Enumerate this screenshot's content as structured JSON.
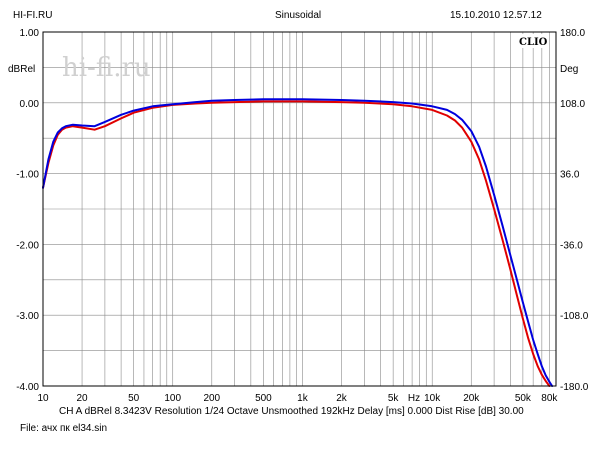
{
  "header": {
    "site": "HI-FI.RU",
    "mode": "Sinusoidal",
    "datetime": "15.10.2010 12.57.12"
  },
  "watermark": "hi-fi.ru",
  "brand": "CLIO",
  "footer": {
    "line1": "CH A   dBRel 8.3423V   Resolution 1/24 Octave   Unsmoothed   192kHz   Delay [ms] 0.000   Dist Rise [dB] 30.00",
    "line2": "File: ачх пк el34.sin"
  },
  "chart_data": {
    "type": "line",
    "x_scale": "log",
    "xlim": [
      10,
      90000
    ],
    "x_ticks": [
      10,
      20,
      50,
      100,
      200,
      500,
      1000,
      2000,
      5000,
      10000,
      20000,
      50000,
      80000
    ],
    "x_tick_labels": [
      "10",
      "20",
      "50",
      "100",
      "200",
      "500",
      "1k",
      "2k",
      "5k",
      "10k",
      "20k",
      "50k",
      "80k"
    ],
    "x_unit": "Hz",
    "ylabel_left": "dBRel",
    "ylim_left": [
      -4.0,
      1.0
    ],
    "y_ticks_left": [
      "1.00",
      "0.00",
      "-1.00",
      "-2.00",
      "-3.00",
      "-4.00"
    ],
    "ylabel_right": "Deg",
    "ylim_right": [
      -180,
      180
    ],
    "y_ticks_right": [
      "180.0",
      "108.0",
      "36.0",
      "-36.0",
      "-108.0",
      "-180.0"
    ],
    "grid": true,
    "series": [
      {
        "color": "#e00000",
        "x": [
          10,
          11,
          12,
          13,
          14,
          15,
          17,
          20,
          25,
          30,
          40,
          50,
          70,
          100,
          150,
          200,
          300,
          500,
          700,
          1000,
          2000,
          3000,
          5000,
          7000,
          10000,
          13000,
          15000,
          17000,
          20000,
          23000,
          26000,
          30000,
          35000,
          40000,
          45000,
          50000,
          55000,
          60000,
          65000,
          70000,
          75000,
          80000
        ],
        "y": [
          -1.2,
          -0.85,
          -0.6,
          -0.45,
          -0.38,
          -0.35,
          -0.33,
          -0.35,
          -0.38,
          -0.33,
          -0.22,
          -0.14,
          -0.07,
          -0.03,
          -0.01,
          0.0,
          0.01,
          0.02,
          0.02,
          0.02,
          0.01,
          0.0,
          -0.02,
          -0.05,
          -0.1,
          -0.18,
          -0.25,
          -0.35,
          -0.55,
          -0.8,
          -1.1,
          -1.5,
          -1.95,
          -2.35,
          -2.72,
          -3.05,
          -3.33,
          -3.55,
          -3.72,
          -3.84,
          -3.93,
          -4.0
        ]
      },
      {
        "color": "#0000dd",
        "x": [
          10,
          11,
          12,
          13,
          14,
          15,
          17,
          20,
          25,
          30,
          40,
          50,
          70,
          100,
          150,
          200,
          300,
          500,
          700,
          1000,
          2000,
          3000,
          5000,
          7000,
          10000,
          13000,
          15000,
          17000,
          20000,
          23000,
          26000,
          30000,
          35000,
          40000,
          45000,
          50000,
          55000,
          60000,
          65000,
          70000,
          75000,
          80000,
          84000
        ],
        "y": [
          -1.2,
          -0.8,
          -0.55,
          -0.42,
          -0.36,
          -0.33,
          -0.31,
          -0.32,
          -0.33,
          -0.27,
          -0.17,
          -0.11,
          -0.05,
          -0.02,
          0.01,
          0.03,
          0.04,
          0.05,
          0.05,
          0.05,
          0.04,
          0.03,
          0.01,
          -0.01,
          -0.05,
          -0.1,
          -0.16,
          -0.24,
          -0.4,
          -0.62,
          -0.9,
          -1.3,
          -1.75,
          -2.15,
          -2.5,
          -2.82,
          -3.1,
          -3.35,
          -3.55,
          -3.72,
          -3.85,
          -3.94,
          -4.0
        ]
      }
    ]
  }
}
